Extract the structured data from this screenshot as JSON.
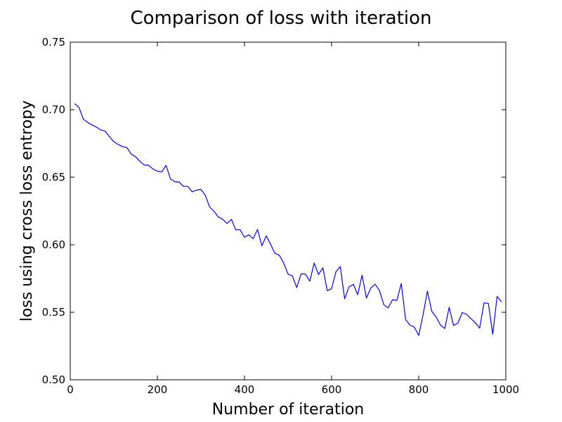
{
  "chart_data": {
    "type": "line",
    "title": "Comparison of loss with iteration",
    "xlabel": "Number of iteration",
    "ylabel": "loss using cross loss entropy",
    "xlim": [
      0,
      1000
    ],
    "ylim": [
      0.5,
      0.75
    ],
    "xticks": [
      0,
      200,
      400,
      600,
      800,
      1000
    ],
    "xtick_labels": [
      "0",
      "200",
      "400",
      "600",
      "800",
      "1000"
    ],
    "yticks": [
      0.5,
      0.55,
      0.6,
      0.65,
      0.7,
      0.75
    ],
    "ytick_labels": [
      "0.50",
      "0.55",
      "0.60",
      "0.65",
      "0.70",
      "0.75"
    ],
    "grid": false,
    "series": [
      {
        "color": "#0000ff",
        "x": [
          10,
          20,
          30,
          40,
          50,
          60,
          70,
          80,
          90,
          100,
          110,
          120,
          130,
          140,
          150,
          160,
          170,
          180,
          190,
          200,
          210,
          220,
          230,
          240,
          250,
          260,
          270,
          280,
          290,
          300,
          310,
          320,
          330,
          340,
          350,
          360,
          370,
          380,
          390,
          400,
          410,
          420,
          430,
          440,
          450,
          460,
          470,
          480,
          490,
          500,
          510,
          520,
          530,
          540,
          550,
          560,
          570,
          580,
          590,
          600,
          610,
          620,
          630,
          640,
          650,
          660,
          670,
          680,
          690,
          700,
          710,
          720,
          730,
          740,
          750,
          760,
          770,
          780,
          790,
          800,
          810,
          820,
          830,
          840,
          850,
          860,
          870,
          880,
          890,
          900,
          910,
          920,
          930,
          940,
          950,
          960,
          970,
          980,
          990
        ],
        "y": [
          0.7045,
          0.7018,
          0.693,
          0.6906,
          0.6887,
          0.6872,
          0.685,
          0.6842,
          0.68,
          0.6763,
          0.6743,
          0.6727,
          0.672,
          0.6671,
          0.6652,
          0.6617,
          0.6591,
          0.6588,
          0.6561,
          0.6545,
          0.654,
          0.6588,
          0.6488,
          0.6467,
          0.6465,
          0.6432,
          0.6432,
          0.6392,
          0.6405,
          0.641,
          0.6367,
          0.628,
          0.6248,
          0.6206,
          0.6189,
          0.6158,
          0.6188,
          0.6111,
          0.6111,
          0.6056,
          0.6074,
          0.6045,
          0.6114,
          0.5992,
          0.6066,
          0.6003,
          0.5937,
          0.5922,
          0.5865,
          0.5783,
          0.577,
          0.5683,
          0.5785,
          0.5783,
          0.573,
          0.5865,
          0.578,
          0.583,
          0.566,
          0.5675,
          0.58,
          0.5838,
          0.56,
          0.5688,
          0.5707,
          0.563,
          0.5775,
          0.5605,
          0.568,
          0.5708,
          0.566,
          0.5555,
          0.5533,
          0.5593,
          0.5588,
          0.5713,
          0.5446,
          0.5405,
          0.539,
          0.5328,
          0.548,
          0.5657,
          0.5507,
          0.5465,
          0.5405,
          0.538,
          0.5537,
          0.5402,
          0.542,
          0.5498,
          0.5485,
          0.5453,
          0.5423,
          0.5383,
          0.557,
          0.5565,
          0.5337,
          0.5617,
          0.5578
        ]
      }
    ]
  }
}
